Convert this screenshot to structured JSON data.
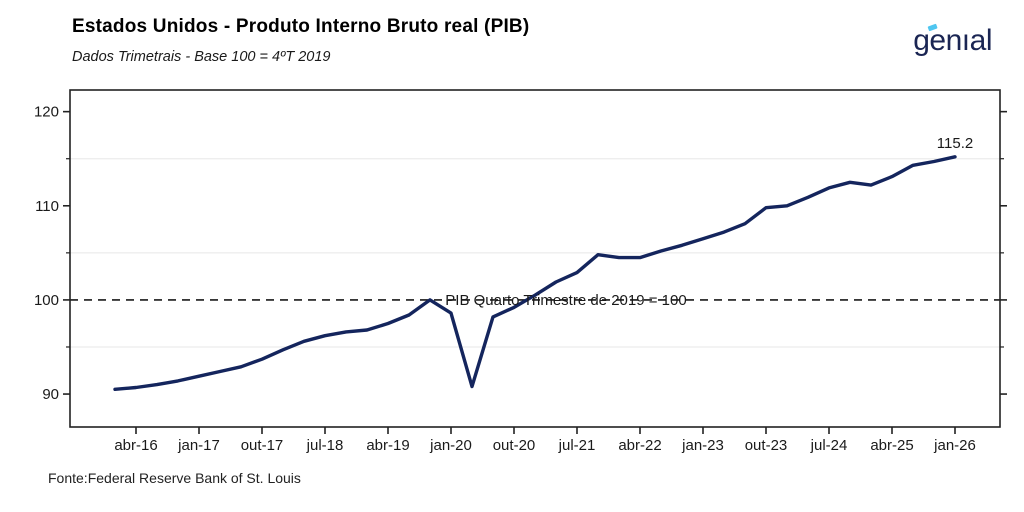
{
  "header": {
    "title": "Estados Unidos - Produto Interno Bruto real (PIB)",
    "subtitle": "Dados Trimetrais - Base 100 = 4ºT 2019",
    "logo_text": "genıal"
  },
  "footer": {
    "source": "Fonte:Federal Reserve Bank of St. Louis"
  },
  "chart_data": {
    "type": "line",
    "title": "Estados Unidos - Produto Interno Bruto real (PIB)",
    "subtitle": "Dados Trimetrais - Base 100 = 4ºT 2019",
    "x": [
      "jan-16",
      "abr-16",
      "jul-16",
      "out-16",
      "jan-17",
      "abr-17",
      "jul-17",
      "out-17",
      "jan-18",
      "abr-18",
      "jul-18",
      "out-18",
      "jan-19",
      "abr-19",
      "jul-19",
      "out-19",
      "jan-20",
      "abr-20",
      "jul-20",
      "out-20",
      "jan-21",
      "abr-21",
      "jul-21",
      "out-21",
      "jan-22",
      "abr-22",
      "jul-22",
      "out-22",
      "jan-23",
      "abr-23",
      "jul-23",
      "out-23",
      "jan-24",
      "abr-24",
      "jul-24",
      "out-24",
      "jan-25",
      "abr-25",
      "jul-25",
      "out-25",
      "jan-26"
    ],
    "values": [
      90.5,
      90.7,
      91.0,
      91.4,
      91.9,
      92.4,
      92.9,
      93.7,
      94.7,
      95.6,
      96.2,
      96.6,
      96.8,
      97.5,
      98.4,
      100.0,
      98.6,
      90.8,
      98.2,
      99.2,
      100.5,
      101.9,
      102.9,
      104.8,
      104.5,
      104.5,
      105.2,
      105.8,
      106.5,
      107.2,
      108.1,
      109.8,
      110.0,
      110.9,
      111.9,
      112.5,
      112.2,
      113.1,
      114.3,
      114.7,
      115.2
    ],
    "x_ticks": [
      "abr-16",
      "jan-17",
      "out-17",
      "jul-18",
      "abr-19",
      "jan-20",
      "out-20",
      "jul-21",
      "abr-22",
      "jan-23",
      "out-23",
      "jul-24",
      "abr-25",
      "jan-26"
    ],
    "y_ticks": [
      90,
      100,
      110,
      120
    ],
    "y_minor_gridlines": [
      95,
      105,
      115
    ],
    "ylim": [
      86.5,
      122.3
    ],
    "baseline": {
      "value": 100,
      "label": "PIB Quarto Trimestre de 2019 = 100"
    },
    "end_label": "115.2",
    "line_color": "#14255d",
    "grid_color": "#ececec",
    "axis_color": "#1a1a1a",
    "legend": "none",
    "grid": "horizontal-minor-only"
  }
}
